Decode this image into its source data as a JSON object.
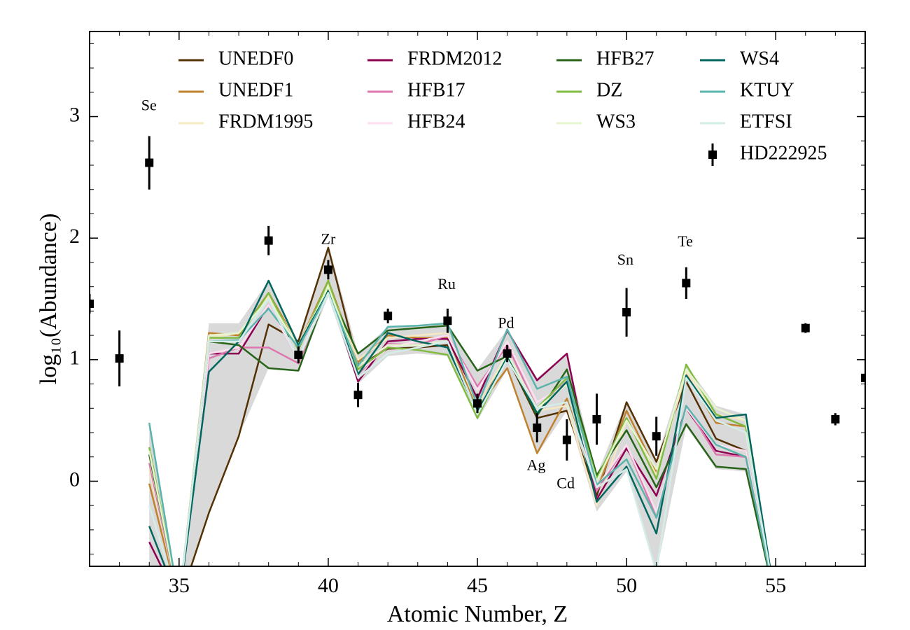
{
  "chart_data": {
    "type": "line",
    "xlabel": "Atomic Number, Z",
    "ylabel": "log₁₀(Abundance)",
    "xlim": [
      32,
      58
    ],
    "ylim": [
      -0.7,
      3.7
    ],
    "xticks": [
      35,
      40,
      45,
      50,
      55
    ],
    "yticks": [
      0,
      1,
      2,
      3
    ],
    "xminor": 1,
    "yminor": 0.2,
    "x": [
      34,
      35,
      36,
      37,
      38,
      39,
      40,
      41,
      42,
      43,
      44,
      45,
      46,
      47,
      48,
      49,
      50,
      51,
      52,
      53,
      54,
      55
    ],
    "band": {
      "color": "#d9d9d9",
      "lower": [
        -1,
        -1,
        -0.26,
        0.37,
        0.93,
        0.91,
        1.52,
        0.8,
        1.03,
        1.05,
        1.03,
        0.5,
        0.92,
        0.22,
        0.58,
        -0.25,
        0.08,
        -0.75,
        0.45,
        0.1,
        0.08,
        -1
      ],
      "upper": [
        0.5,
        -1,
        1.3,
        1.3,
        1.65,
        1.15,
        1.95,
        1.05,
        1.27,
        1.28,
        1.3,
        0.92,
        1.25,
        0.85,
        1.05,
        0.05,
        0.66,
        0.18,
        0.96,
        0.62,
        0.55,
        -1
      ]
    },
    "series": [
      {
        "name": "UNEDF0",
        "color": "#543005",
        "values": [
          -1.2,
          -1,
          -0.26,
          0.37,
          1.29,
          1.15,
          1.92,
          0.96,
          1.09,
          1.1,
          1.12,
          0.63,
          1.02,
          0.52,
          0.58,
          -0.12,
          0.65,
          0.16,
          0.82,
          0.35,
          0.25,
          -1
        ]
      },
      {
        "name": "UNEDF1",
        "color": "#bf812d",
        "values": [
          -0.02,
          -1,
          1.22,
          1.2,
          1.55,
          1.12,
          1.65,
          0.98,
          1.2,
          1.18,
          1.18,
          0.6,
          0.93,
          0.23,
          0.68,
          -0.08,
          0.58,
          0.08,
          0.88,
          0.48,
          0.45,
          -1
        ]
      },
      {
        "name": "FRDM1995",
        "color": "#f6e8c3",
        "values": [
          0.1,
          -1,
          1.18,
          1.22,
          1.52,
          1.12,
          1.62,
          1.0,
          1.18,
          1.2,
          1.22,
          0.62,
          1.05,
          0.58,
          0.62,
          -0.2,
          0.5,
          0.05,
          0.9,
          0.55,
          0.5,
          -1
        ]
      },
      {
        "name": "FRDM2012",
        "color": "#8e0152",
        "values": [
          -0.5,
          -1,
          1.05,
          1.05,
          1.45,
          1.0,
          1.58,
          0.82,
          1.15,
          1.17,
          1.17,
          0.68,
          1.24,
          0.83,
          1.05,
          -0.15,
          0.27,
          -0.12,
          0.6,
          0.25,
          0.2,
          -1
        ]
      },
      {
        "name": "HFB17",
        "color": "#de77ae",
        "values": [
          0.15,
          -1,
          1.01,
          1.1,
          1.1,
          0.97,
          1.58,
          0.88,
          1.13,
          1.12,
          1.2,
          0.78,
          1.12,
          0.6,
          0.82,
          -0.08,
          0.3,
          -0.3,
          0.62,
          0.22,
          0.2,
          -1
        ]
      },
      {
        "name": "HFB24",
        "color": "#fde0ef",
        "values": [
          0.2,
          -1,
          1.05,
          1.1,
          1.45,
          1.0,
          1.6,
          0.9,
          1.1,
          1.15,
          1.2,
          0.75,
          1.15,
          0.65,
          0.8,
          -0.05,
          0.3,
          -0.25,
          0.6,
          0.3,
          0.25,
          -1
        ]
      },
      {
        "name": "HFB27",
        "color": "#276419",
        "values": [
          0.22,
          -1,
          1.15,
          1.12,
          0.93,
          0.91,
          1.58,
          1.05,
          1.24,
          1.26,
          1.28,
          0.91,
          1.03,
          0.54,
          0.92,
          0.05,
          0.42,
          -0.05,
          0.47,
          0.12,
          0.1,
          -1
        ]
      },
      {
        "name": "DZ",
        "color": "#7fbc41",
        "values": [
          0.28,
          -1,
          1.18,
          1.18,
          1.55,
          1.08,
          1.65,
          0.92,
          1.1,
          1.08,
          1.04,
          0.52,
          1.02,
          0.6,
          0.85,
          0.02,
          0.52,
          0.02,
          0.96,
          0.55,
          0.45,
          -1
        ]
      },
      {
        "name": "WS3",
        "color": "#e6f5d0",
        "values": [
          0.25,
          -1,
          1.2,
          1.22,
          1.5,
          1.1,
          1.6,
          0.95,
          1.12,
          1.12,
          1.15,
          0.55,
          1.05,
          0.6,
          0.8,
          0.0,
          0.5,
          0.1,
          0.92,
          0.6,
          0.5,
          -1
        ]
      },
      {
        "name": "WS4",
        "color": "#01665e",
        "values": [
          -0.37,
          -1,
          0.9,
          1.15,
          1.65,
          1.12,
          1.56,
          0.88,
          1.22,
          1.15,
          1.1,
          0.57,
          1.02,
          0.56,
          0.82,
          -0.17,
          0.12,
          -0.43,
          0.87,
          0.52,
          0.55,
          -1
        ]
      },
      {
        "name": "KTUY",
        "color": "#5ab4ac",
        "values": [
          0.48,
          -1,
          1.15,
          1.16,
          1.42,
          1.1,
          1.55,
          0.95,
          1.27,
          1.28,
          1.3,
          0.62,
          1.25,
          0.76,
          0.86,
          -0.03,
          0.18,
          -0.3,
          0.62,
          0.3,
          0.2,
          -1
        ]
      },
      {
        "name": "ETFSI",
        "color": "#d5ede8",
        "values": [
          -0.2,
          -1,
          1.15,
          1.15,
          1.5,
          1.0,
          1.55,
          0.85,
          1.05,
          1.1,
          1.15,
          0.55,
          1.0,
          0.6,
          0.65,
          -0.05,
          0.1,
          -0.75,
          0.85,
          0.5,
          0.4,
          -1
        ]
      }
    ],
    "observations": {
      "name": "HD222925",
      "color": "#000000",
      "x": [
        32,
        33,
        34,
        38,
        39,
        40,
        41,
        42,
        44,
        45,
        46,
        47,
        48,
        49,
        50,
        51,
        52,
        56,
        57,
        58
      ],
      "values": [
        1.46,
        1.01,
        2.62,
        1.98,
        1.04,
        1.74,
        0.71,
        1.36,
        1.32,
        0.64,
        1.05,
        0.44,
        0.34,
        0.51,
        1.39,
        0.37,
        1.63,
        1.26,
        0.51,
        0.85
      ],
      "errors": [
        0.08,
        0.23,
        0.22,
        0.12,
        0.07,
        0.08,
        0.1,
        0.06,
        0.1,
        0.08,
        0.07,
        0.12,
        0.17,
        0.21,
        0.2,
        0.16,
        0.13,
        0.04,
        0.05,
        0.03
      ]
    },
    "annotations": [
      "Se",
      "Zr",
      "Ru",
      "Pd",
      "Ag",
      "Cd",
      "Sn",
      "Te"
    ]
  }
}
